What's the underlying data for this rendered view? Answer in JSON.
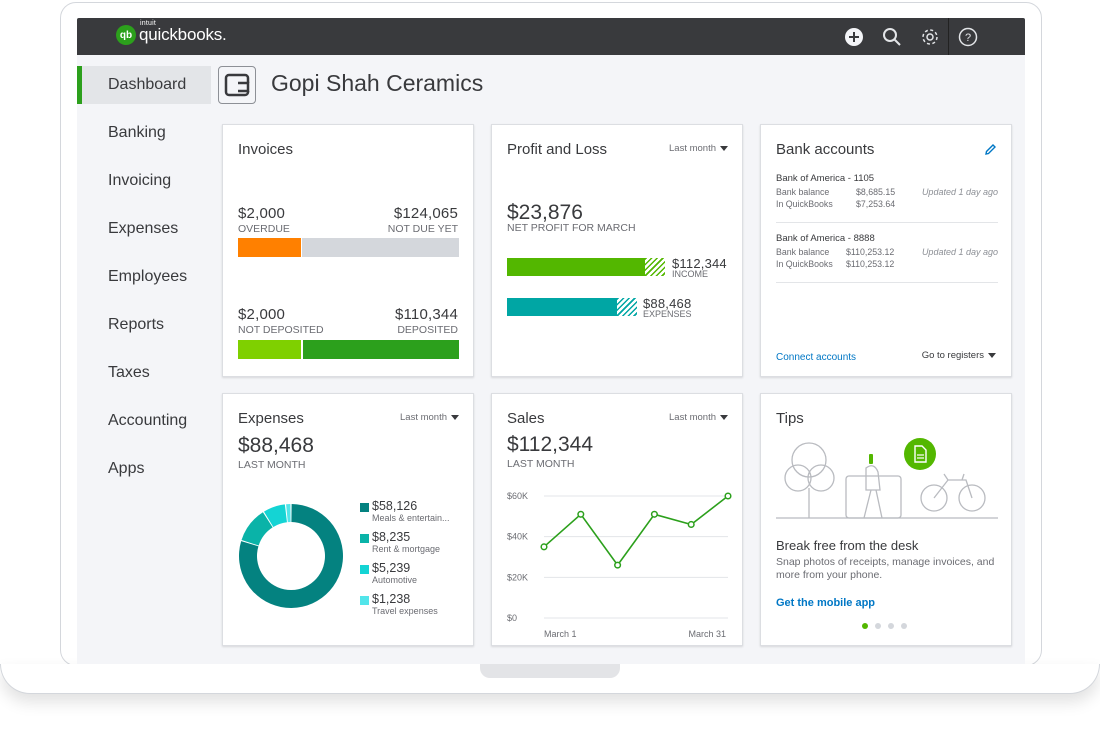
{
  "app": {
    "logo_badge": "qb",
    "logo_small": "intuit",
    "logo_name": "quickbooks.",
    "brand_color": "#2ca01c"
  },
  "topbar": {
    "icons": [
      "plus-circle-icon",
      "search-icon",
      "gear-icon",
      "help-icon"
    ]
  },
  "sidebar": {
    "items": [
      {
        "label": "Dashboard",
        "active": true
      },
      {
        "label": "Banking"
      },
      {
        "label": "Invoicing"
      },
      {
        "label": "Expenses"
      },
      {
        "label": "Employees"
      },
      {
        "label": "Reports"
      },
      {
        "label": "Taxes"
      },
      {
        "label": "Accounting"
      },
      {
        "label": "Apps"
      }
    ]
  },
  "company": {
    "name": "Gopi Shah Ceramics"
  },
  "invoices": {
    "title": "Invoices",
    "overdue": {
      "amount": "$2,000",
      "label": "OVERDUE"
    },
    "not_due": {
      "amount": "$124,065",
      "label": "NOT DUE YET"
    },
    "not_deposited": {
      "amount": "$2,000",
      "label": "NOT DEPOSITED"
    },
    "deposited": {
      "amount": "$110,344",
      "label": "DEPOSITED"
    },
    "colors": {
      "overdue": "#ff8000",
      "not_due": "#d4d7dc",
      "not_deposited": "#7fd000",
      "deposited": "#2ca01c"
    }
  },
  "profit_loss": {
    "title": "Profit and Loss",
    "period": "Last month",
    "amount": "$23,876",
    "label": "NET PROFIT FOR MARCH",
    "income": {
      "amount": "$112,344",
      "label": "INCOME"
    },
    "expenses": {
      "amount": "$88,468",
      "label": "EXPENSES"
    },
    "colors": {
      "income": "#53b700",
      "expenses": "#00a6a4"
    }
  },
  "bank": {
    "title": "Bank accounts",
    "accounts": [
      {
        "name": "Bank of America - 1105",
        "bank_label": "Bank balance",
        "bank_balance": "$8,685.15",
        "qb_label": "In QuickBooks",
        "qb_balance": "$7,253.64",
        "updated": "Updated 1 day ago"
      },
      {
        "name": "Bank of America - 8888",
        "bank_label": "Bank balance",
        "bank_balance": "$110,253.12",
        "qb_label": "In QuickBooks",
        "qb_balance": "$110,253.12",
        "updated": "Updated 1 day ago"
      }
    ],
    "connect": "Connect accounts",
    "registers": "Go to registers"
  },
  "expenses": {
    "title": "Expenses",
    "period": "Last month",
    "amount": "$88,468",
    "label": "LAST MONTH",
    "items": [
      {
        "amount": "$58,126",
        "label": "Meals & entertain...",
        "value": 58126,
        "color": "#048280"
      },
      {
        "amount": "$8,235",
        "label": "Rent & mortgage",
        "value": 8235,
        "color": "#0ab3a8"
      },
      {
        "amount": "$5,239",
        "label": "Automotive",
        "value": 5239,
        "color": "#14d4d4"
      },
      {
        "amount": "$1,238",
        "label": "Travel expenses",
        "value": 1238,
        "color": "#52e5ea"
      }
    ]
  },
  "sales": {
    "title": "Sales",
    "period": "Last month",
    "amount": "$112,344",
    "label": "LAST MONTH",
    "chart_data": {
      "type": "line",
      "x_start": "March 1",
      "x_end": "March 31",
      "y_ticks": [
        "$60K",
        "$40K",
        "$20K",
        "$0"
      ],
      "ylim": [
        0,
        60000
      ],
      "values": [
        35000,
        51000,
        26000,
        51000,
        46000,
        60000
      ],
      "grid": true,
      "line_color": "#2ca01c"
    }
  },
  "tips": {
    "title": "Tips",
    "heading": "Break free from the desk",
    "body": "Snap photos of receipts, manage invoices, and more from your phone.",
    "link": "Get the mobile app",
    "dots": 4,
    "active_dot": 0
  }
}
